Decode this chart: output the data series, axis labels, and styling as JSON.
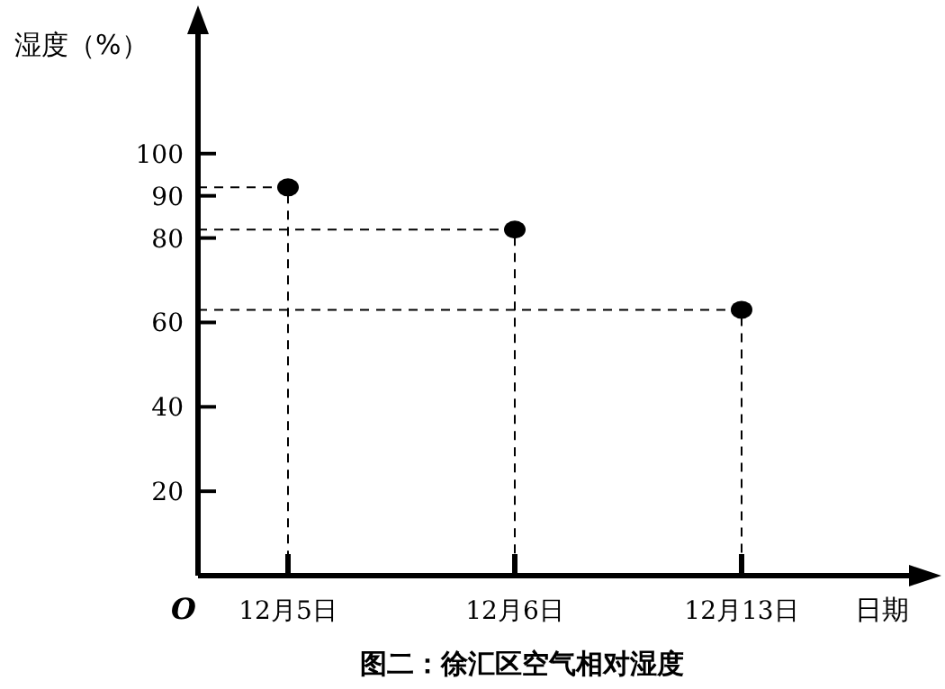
{
  "chart_data": {
    "type": "scatter",
    "title": "图二：徐汇区空气相对湿度",
    "xlabel": "日期",
    "ylabel": "湿度（%）",
    "categories": [
      "12月5日",
      "12月6日",
      "12月13日"
    ],
    "values": [
      92,
      82,
      63
    ],
    "color": "#000000",
    "marker": "circle",
    "ylim": [
      0,
      130
    ],
    "yticks": [
      20,
      40,
      60,
      80,
      90,
      100
    ],
    "annotations": [
      "O"
    ]
  }
}
